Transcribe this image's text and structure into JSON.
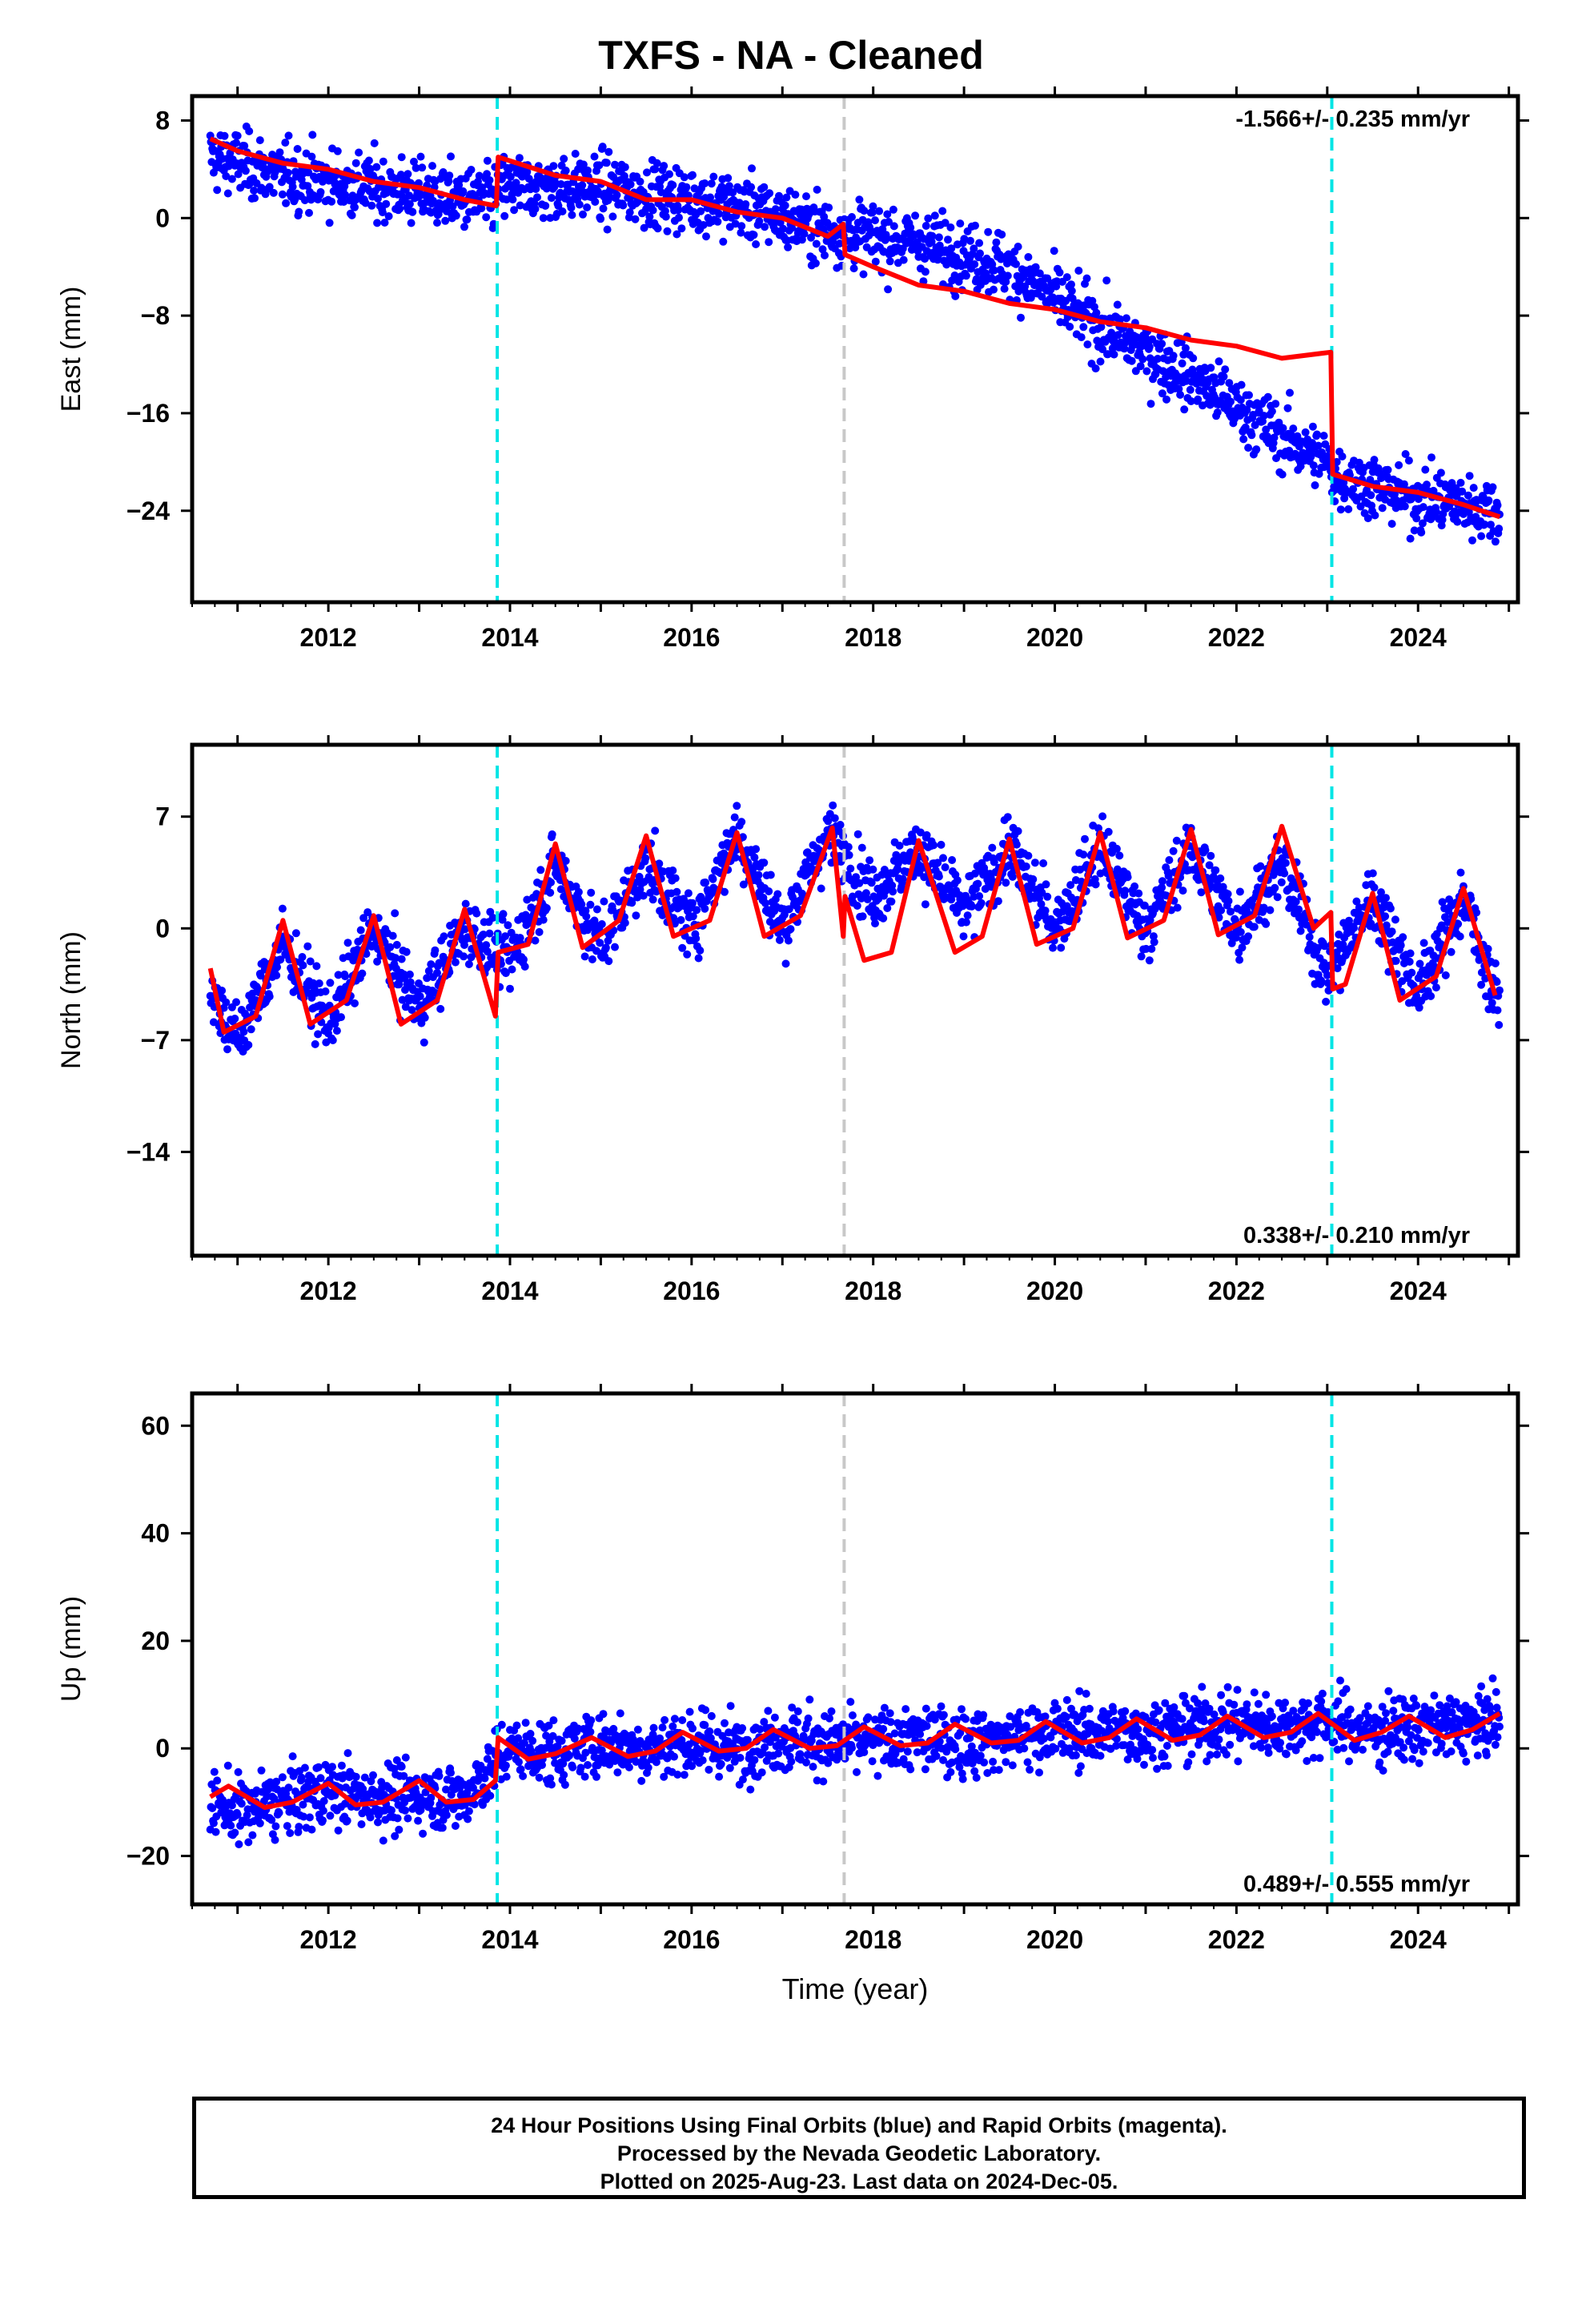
{
  "title": "TXFS  - NA - Cleaned",
  "colors": {
    "points": "#0000ff",
    "model": "#ff0000",
    "equipment_change": "#00e5e5",
    "other_event": "#c8c8c8"
  },
  "caption": {
    "line1": "24 Hour Positions Using Final Orbits (blue) and Rapid Orbits (magenta).",
    "line2": "Processed by the Nevada Geodetic Laboratory.",
    "line3": "Plotted on 2025-Aug-23. Last data on 2024-Dec-05."
  },
  "chart_data": [
    {
      "type": "scatter",
      "panel": "east",
      "ylabel": "East (mm)",
      "xlabel": "",
      "rate_label": "-1.566+/- 0.235 mm/yr",
      "rate_position": "top-right",
      "xlim": [
        2010.5,
        2025.1
      ],
      "ylim": [
        -31.5,
        10
      ],
      "xticks": [
        2012,
        2014,
        2016,
        2018,
        2020,
        2022,
        2024
      ],
      "yticks": [
        8,
        0,
        -8,
        -16,
        -24
      ],
      "event_lines": [
        {
          "x": 2013.86,
          "kind": "equipment_change"
        },
        {
          "x": 2017.68,
          "kind": "other_event"
        },
        {
          "x": 2023.05,
          "kind": "equipment_change"
        }
      ],
      "series": [
        {
          "kind": "observations",
          "x": [
            2010.7,
            2011.0,
            2011.5,
            2012.0,
            2012.5,
            2013.0,
            2013.5,
            2013.85,
            2013.87,
            2014.5,
            2015.0,
            2015.5,
            2016.0,
            2016.5,
            2017.0,
            2017.5,
            2018.0,
            2018.5,
            2019.0,
            2019.5,
            2020.0,
            2020.5,
            2021.0,
            2021.5,
            2022.0,
            2022.5,
            2023.0,
            2023.04,
            2023.07,
            2023.5,
            2024.0,
            2024.5,
            2024.9
          ],
          "y": [
            5,
            4.5,
            3.5,
            3,
            2.5,
            2,
            1.5,
            1.5,
            2.5,
            2.5,
            2.5,
            2,
            1.5,
            1,
            0,
            -1,
            -1.5,
            -2,
            -3,
            -4,
            -6.5,
            -9,
            -11,
            -13,
            -15.5,
            -18,
            -20,
            -20.5,
            -21,
            -22,
            -23,
            -23.5,
            -24
          ]
        },
        {
          "kind": "model",
          "x": [
            2010.7,
            2011.0,
            2011.5,
            2012.0,
            2012.5,
            2013.0,
            2013.5,
            2013.85,
            2013.87,
            2014.5,
            2015.0,
            2015.5,
            2016.0,
            2016.5,
            2017.0,
            2017.5,
            2017.67,
            2017.69,
            2018.0,
            2018.5,
            2019.0,
            2019.5,
            2020.0,
            2020.5,
            2021.0,
            2021.5,
            2022.0,
            2022.5,
            2023.04,
            2023.06,
            2023.5,
            2024.0,
            2024.5,
            2024.9
          ],
          "y": [
            6.5,
            5.5,
            4.5,
            4,
            3,
            2.5,
            1.5,
            1,
            5,
            3.5,
            3,
            1.5,
            1.5,
            0.5,
            0,
            -1.5,
            -0.5,
            -3,
            -4,
            -5.5,
            -6,
            -7,
            -7.5,
            -8.5,
            -9,
            -10,
            -10.5,
            -11.5,
            -11,
            -21,
            -22,
            -22.5,
            -23.5,
            -24.5
          ]
        }
      ]
    },
    {
      "type": "scatter",
      "panel": "north",
      "ylabel": "North (mm)",
      "xlabel": "",
      "rate_label": "0.338+/- 0.210 mm/yr",
      "rate_position": "bottom-right",
      "xlim": [
        2010.5,
        2025.1
      ],
      "ylim": [
        -20.5,
        11.5
      ],
      "xticks": [
        2012,
        2014,
        2016,
        2018,
        2020,
        2022,
        2024
      ],
      "yticks": [
        7,
        0,
        -7,
        -14
      ],
      "event_lines": [
        {
          "x": 2013.86,
          "kind": "equipment_change"
        },
        {
          "x": 2017.68,
          "kind": "other_event"
        },
        {
          "x": 2023.05,
          "kind": "equipment_change"
        }
      ],
      "series": [
        {
          "kind": "observations",
          "x": [
            2010.7,
            2011.0,
            2011.5,
            2012.0,
            2012.5,
            2013.0,
            2013.5,
            2014.0,
            2014.5,
            2015.0,
            2015.5,
            2016.0,
            2016.5,
            2017.0,
            2017.5,
            2018.0,
            2018.5,
            2019.0,
            2019.5,
            2020.0,
            2020.5,
            2021.0,
            2021.5,
            2022.0,
            2022.5,
            2023.0,
            2023.5,
            2024.0,
            2024.5,
            2024.9
          ],
          "y": [
            -4,
            -7,
            -1,
            -6,
            0,
            -5,
            0,
            -2,
            4,
            -1,
            4,
            0,
            6,
            0,
            6,
            2,
            5,
            1,
            5,
            0,
            5,
            0,
            5,
            0,
            4,
            -3,
            2,
            -4,
            2,
            -5
          ]
        },
        {
          "kind": "model",
          "x": [
            2010.7,
            2010.85,
            2011.2,
            2011.5,
            2011.8,
            2012.2,
            2012.5,
            2012.8,
            2013.2,
            2013.5,
            2013.84,
            2013.87,
            2014.2,
            2014.5,
            2014.8,
            2015.2,
            2015.5,
            2015.8,
            2016.2,
            2016.5,
            2016.8,
            2017.2,
            2017.55,
            2017.67,
            2017.69,
            2017.9,
            2018.2,
            2018.5,
            2018.9,
            2019.2,
            2019.5,
            2019.8,
            2020.2,
            2020.5,
            2020.8,
            2021.2,
            2021.5,
            2021.8,
            2022.2,
            2022.5,
            2022.85,
            2023.04,
            2023.06,
            2023.2,
            2023.5,
            2023.8,
            2024.2,
            2024.5,
            2024.85
          ],
          "y": [
            -2.5,
            -6.5,
            -5.5,
            0.5,
            -6,
            -4.5,
            0.8,
            -6,
            -4.5,
            1.2,
            -5.5,
            -1.5,
            -1,
            5.3,
            -1.2,
            0.5,
            5.8,
            -0.5,
            0.5,
            6,
            -0.5,
            0.8,
            6.3,
            -0.5,
            2,
            -2,
            -1.5,
            5.5,
            -1.5,
            -0.5,
            5.6,
            -1,
            0,
            6,
            -0.6,
            0.5,
            6.2,
            -0.4,
            0.8,
            6.4,
            0,
            1,
            -3.8,
            -3.5,
            2.2,
            -4.5,
            -3,
            2.5,
            -4.2
          ]
        }
      ]
    },
    {
      "type": "scatter",
      "panel": "up",
      "ylabel": "Up (mm)",
      "xlabel": "Time (year)",
      "rate_label": "0.489+/- 0.555 mm/yr",
      "rate_position": "bottom-right",
      "xlim": [
        2010.5,
        2025.1
      ],
      "ylim": [
        -29,
        66
      ],
      "xticks": [
        2012,
        2014,
        2016,
        2018,
        2020,
        2022,
        2024
      ],
      "yticks": [
        60,
        40,
        20,
        0,
        -20
      ],
      "event_lines": [
        {
          "x": 2013.86,
          "kind": "equipment_change"
        },
        {
          "x": 2017.68,
          "kind": "other_event"
        },
        {
          "x": 2023.05,
          "kind": "equipment_change"
        }
      ],
      "series": [
        {
          "kind": "observations",
          "x": [
            2010.7,
            2011.0,
            2011.5,
            2012.0,
            2012.5,
            2013.0,
            2013.5,
            2014.0,
            2014.5,
            2015.0,
            2015.5,
            2016.0,
            2016.5,
            2017.0,
            2017.5,
            2018.0,
            2018.5,
            2019.0,
            2019.5,
            2020.0,
            2020.5,
            2021.0,
            2021.5,
            2022.0,
            2022.5,
            2023.0,
            2023.5,
            2024.0,
            2024.5,
            2024.9
          ],
          "y": [
            -10,
            -12,
            -10,
            -8,
            -9,
            -9,
            -9,
            0,
            -1,
            1,
            0,
            1,
            0,
            2,
            1,
            1,
            2,
            1,
            2,
            3,
            3,
            3,
            4,
            5,
            4,
            5,
            3,
            4,
            4,
            5
          ]
        },
        {
          "kind": "model",
          "x": [
            2010.7,
            2010.9,
            2011.3,
            2011.6,
            2012.0,
            2012.3,
            2012.6,
            2013.0,
            2013.3,
            2013.6,
            2013.84,
            2013.87,
            2014.2,
            2014.5,
            2014.9,
            2015.3,
            2015.6,
            2015.9,
            2016.3,
            2016.6,
            2016.9,
            2017.3,
            2017.6,
            2017.9,
            2018.3,
            2018.6,
            2018.9,
            2019.3,
            2019.6,
            2019.9,
            2020.3,
            2020.6,
            2020.9,
            2021.3,
            2021.6,
            2021.9,
            2022.3,
            2022.6,
            2022.9,
            2023.3,
            2023.6,
            2023.9,
            2024.3,
            2024.6,
            2024.9
          ],
          "y": [
            -9,
            -7,
            -11,
            -10,
            -6.5,
            -10.5,
            -10,
            -6,
            -10,
            -9.5,
            -6,
            2,
            -2,
            -1,
            2,
            -1.5,
            -0.5,
            3,
            -0.5,
            0,
            3.5,
            0,
            0.5,
            4,
            0.5,
            1,
            4.5,
            1,
            1.5,
            5,
            1,
            2,
            5.5,
            1.5,
            2.5,
            6,
            2,
            3,
            6.5,
            1.5,
            3,
            6,
            2,
            3.5,
            6.5
          ]
        }
      ]
    }
  ]
}
